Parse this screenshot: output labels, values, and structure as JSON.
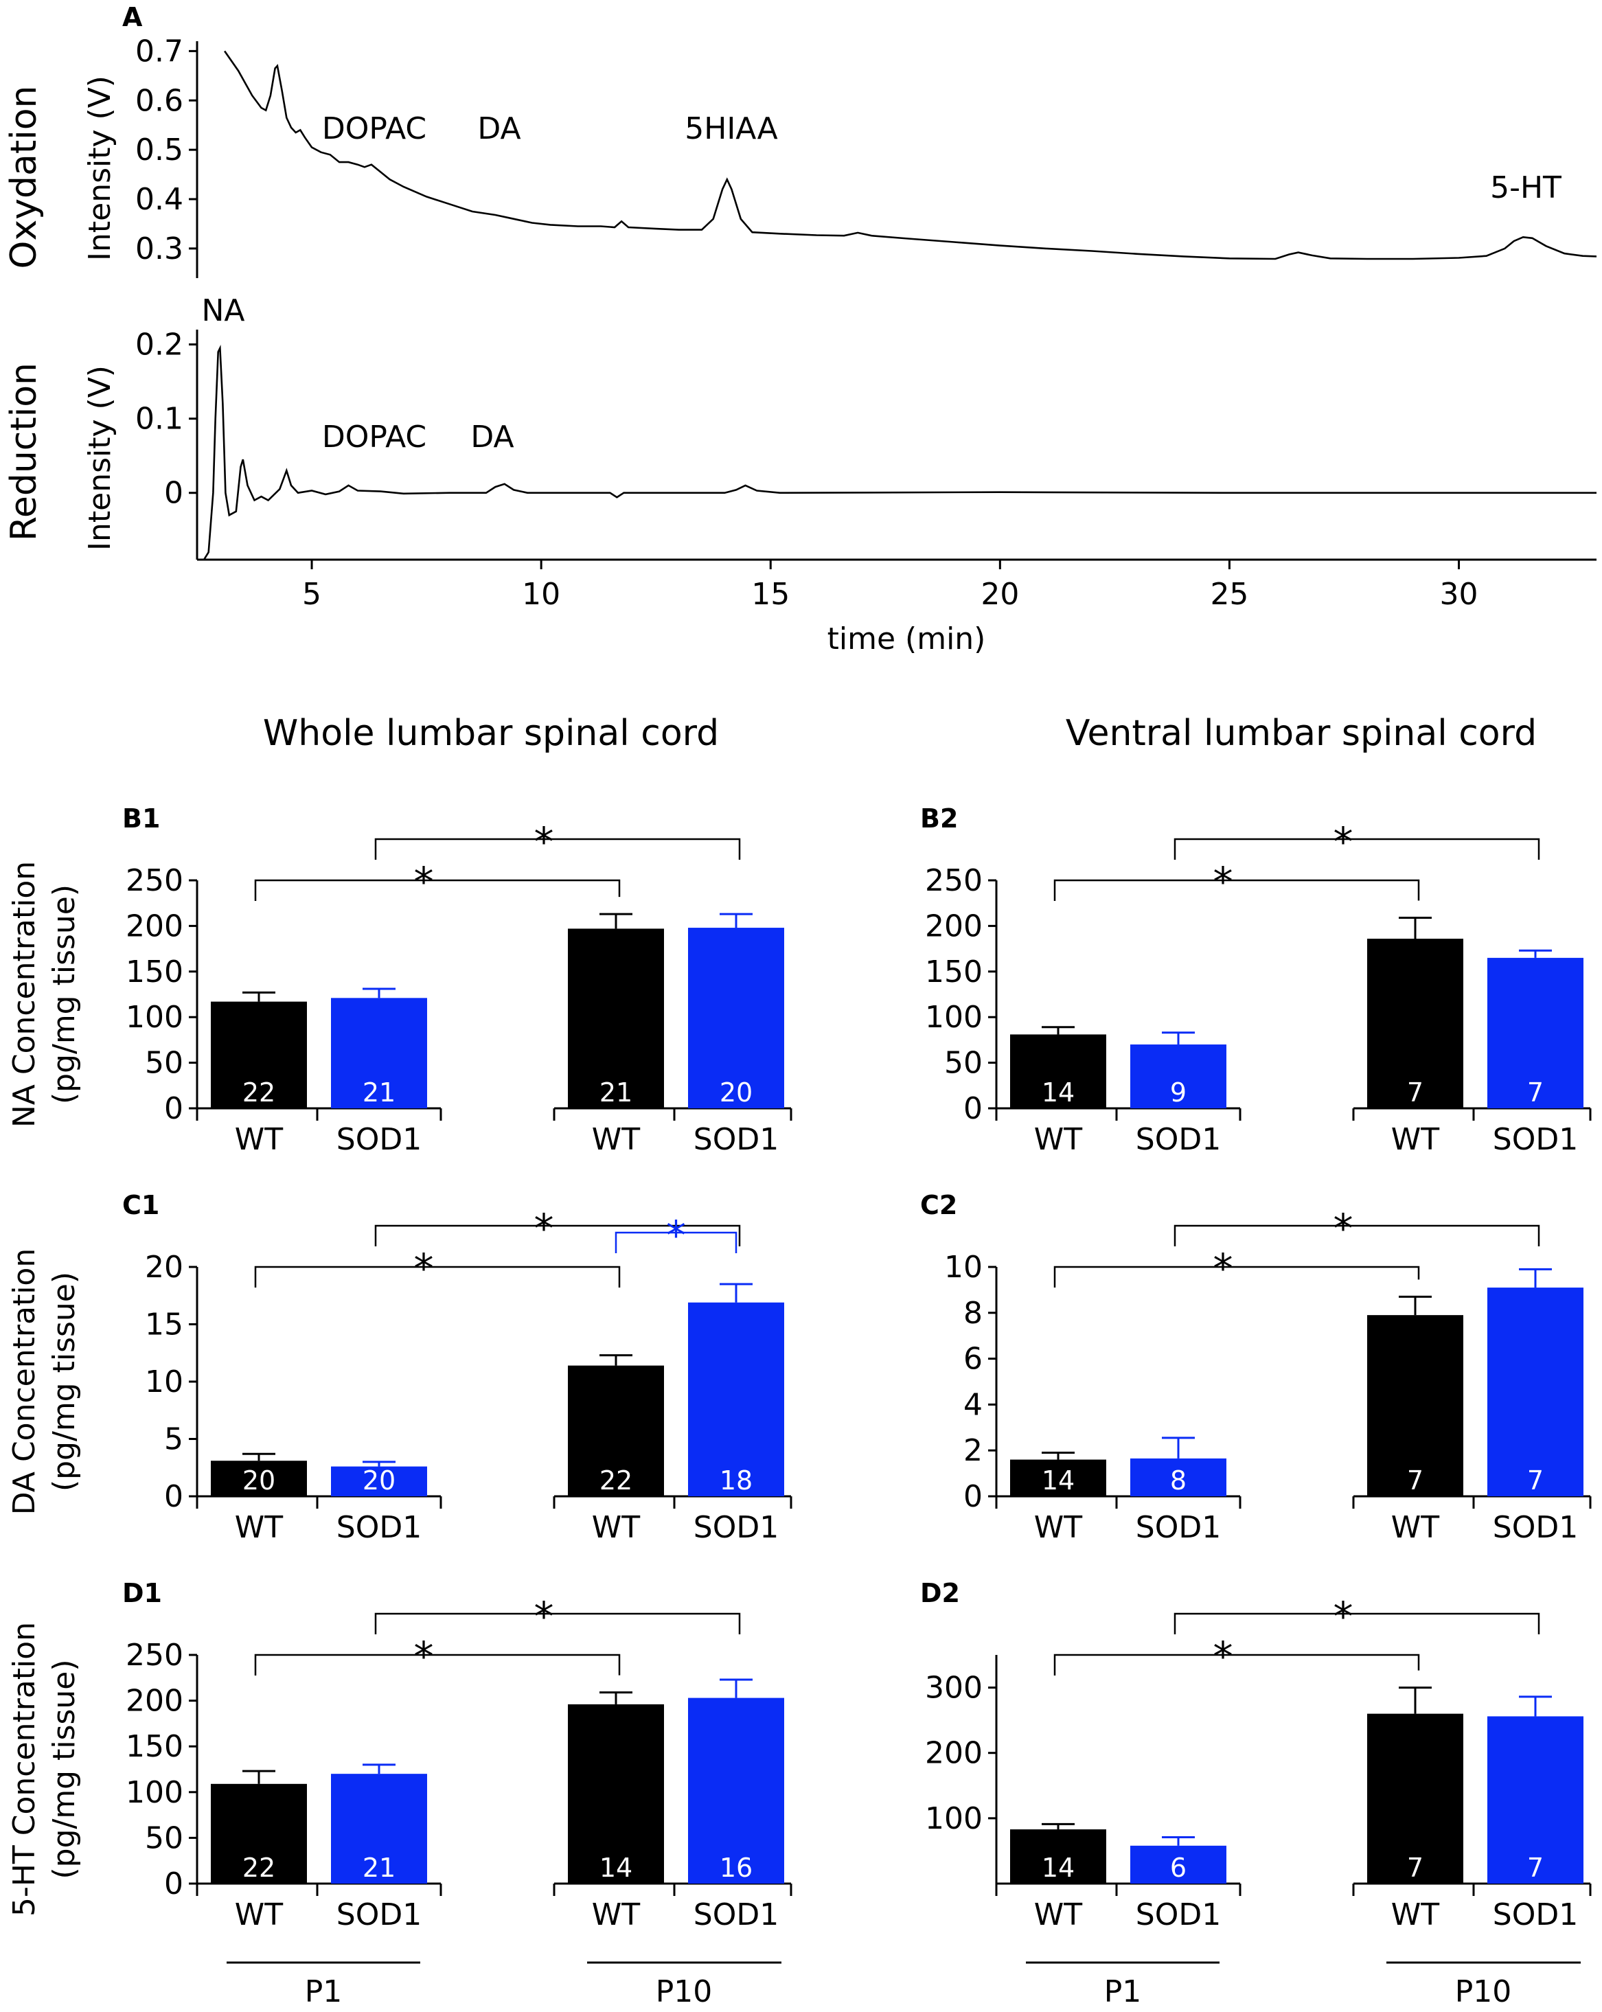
{
  "colors": {
    "wt": "#000000",
    "sod1": "#0a2cf5",
    "sig_blue": "#0a2cf5",
    "axis": "#000000"
  },
  "headings": {
    "left": "Whole lumbar spinal cord",
    "right": "Ventral lumbar spinal cord"
  },
  "groups": {
    "g1": "P1",
    "g2": "P10"
  },
  "star": "*",
  "chart_data": [
    {
      "id": "A",
      "type": "line",
      "panel_label": "A",
      "xlabel": "time (min)",
      "xlim": [
        2.5,
        33
      ],
      "xticks": [
        "5",
        "10",
        "15",
        "20",
        "25",
        "30"
      ],
      "subplots": [
        {
          "name": "oxidation",
          "row_label": "Oxydation",
          "ylabel": "Intensity (V)",
          "ylim": [
            0.24,
            0.72
          ],
          "yticks": [
            "0.7",
            "0.6",
            "0.5",
            "0.4",
            "0.3"
          ],
          "peak_labels": [
            "DOPAC",
            "DA",
            "5HIAA",
            "5-HT"
          ],
          "trace": [
            [
              3.1,
              0.7
            ],
            [
              3.4,
              0.66
            ],
            [
              3.7,
              0.61
            ],
            [
              3.9,
              0.585
            ],
            [
              4.0,
              0.58
            ],
            [
              4.1,
              0.61
            ],
            [
              4.2,
              0.665
            ],
            [
              4.25,
              0.67
            ],
            [
              4.35,
              0.62
            ],
            [
              4.45,
              0.565
            ],
            [
              4.55,
              0.545
            ],
            [
              4.65,
              0.535
            ],
            [
              4.75,
              0.54
            ],
            [
              4.85,
              0.525
            ],
            [
              5.0,
              0.505
            ],
            [
              5.2,
              0.495
            ],
            [
              5.4,
              0.49
            ],
            [
              5.6,
              0.475
            ],
            [
              5.8,
              0.475
            ],
            [
              6.0,
              0.47
            ],
            [
              6.15,
              0.465
            ],
            [
              6.3,
              0.47
            ],
            [
              6.5,
              0.455
            ],
            [
              6.7,
              0.44
            ],
            [
              7.0,
              0.425
            ],
            [
              7.5,
              0.405
            ],
            [
              8.0,
              0.39
            ],
            [
              8.5,
              0.375
            ],
            [
              9.0,
              0.368
            ],
            [
              9.3,
              0.362
            ],
            [
              9.5,
              0.358
            ],
            [
              9.8,
              0.352
            ],
            [
              10.2,
              0.348
            ],
            [
              10.8,
              0.345
            ],
            [
              11.3,
              0.345
            ],
            [
              11.6,
              0.343
            ],
            [
              11.75,
              0.355
            ],
            [
              11.9,
              0.343
            ],
            [
              12.5,
              0.34
            ],
            [
              13.0,
              0.338
            ],
            [
              13.5,
              0.338
            ],
            [
              13.75,
              0.36
            ],
            [
              13.95,
              0.42
            ],
            [
              14.05,
              0.44
            ],
            [
              14.15,
              0.42
            ],
            [
              14.35,
              0.36
            ],
            [
              14.6,
              0.333
            ],
            [
              15.2,
              0.33
            ],
            [
              16.0,
              0.327
            ],
            [
              16.6,
              0.326
            ],
            [
              16.9,
              0.332
            ],
            [
              17.2,
              0.326
            ],
            [
              18.0,
              0.32
            ],
            [
              19.0,
              0.313
            ],
            [
              20.0,
              0.306
            ],
            [
              21.0,
              0.3
            ],
            [
              22.0,
              0.295
            ],
            [
              23.0,
              0.289
            ],
            [
              24.0,
              0.284
            ],
            [
              25.0,
              0.28
            ],
            [
              26.0,
              0.279
            ],
            [
              26.3,
              0.288
            ],
            [
              26.5,
              0.292
            ],
            [
              26.8,
              0.286
            ],
            [
              27.2,
              0.28
            ],
            [
              28.0,
              0.279
            ],
            [
              29.0,
              0.279
            ],
            [
              30.0,
              0.281
            ],
            [
              30.6,
              0.285
            ],
            [
              31.0,
              0.3
            ],
            [
              31.2,
              0.315
            ],
            [
              31.4,
              0.323
            ],
            [
              31.6,
              0.321
            ],
            [
              31.9,
              0.305
            ],
            [
              32.3,
              0.29
            ],
            [
              32.7,
              0.285
            ],
            [
              33.0,
              0.284
            ]
          ]
        },
        {
          "name": "reduction",
          "row_label": "Reduction",
          "ylabel": "Intensity (V)",
          "ylim": [
            -0.09,
            0.22
          ],
          "yticks": [
            "0.2",
            "0.1",
            "0"
          ],
          "peak_labels": [
            "NA",
            "DOPAC",
            "DA"
          ],
          "trace": [
            [
              2.65,
              -0.09
            ],
            [
              2.75,
              -0.08
            ],
            [
              2.85,
              0.0
            ],
            [
              2.9,
              0.1
            ],
            [
              2.96,
              0.19
            ],
            [
              3.0,
              0.195
            ],
            [
              3.06,
              0.12
            ],
            [
              3.12,
              0.0
            ],
            [
              3.2,
              -0.03
            ],
            [
              3.35,
              -0.025
            ],
            [
              3.45,
              0.035
            ],
            [
              3.5,
              0.045
            ],
            [
              3.6,
              0.01
            ],
            [
              3.75,
              -0.01
            ],
            [
              3.9,
              -0.005
            ],
            [
              4.05,
              -0.01
            ],
            [
              4.3,
              0.005
            ],
            [
              4.45,
              0.03
            ],
            [
              4.55,
              0.01
            ],
            [
              4.7,
              0.0
            ],
            [
              5.0,
              0.003
            ],
            [
              5.3,
              -0.002
            ],
            [
              5.6,
              0.002
            ],
            [
              5.8,
              0.01
            ],
            [
              6.0,
              0.003
            ],
            [
              6.5,
              0.002
            ],
            [
              7.0,
              -0.001
            ],
            [
              8.0,
              0.0
            ],
            [
              8.8,
              0.0
            ],
            [
              9.0,
              0.008
            ],
            [
              9.2,
              0.012
            ],
            [
              9.4,
              0.004
            ],
            [
              9.7,
              0.0
            ],
            [
              10.5,
              0.0
            ],
            [
              11.5,
              0.0
            ],
            [
              11.65,
              -0.006
            ],
            [
              11.8,
              0.0
            ],
            [
              13.0,
              0.0
            ],
            [
              14.0,
              0.0
            ],
            [
              14.25,
              0.004
            ],
            [
              14.45,
              0.01
            ],
            [
              14.7,
              0.003
            ],
            [
              15.2,
              0.0
            ],
            [
              20.0,
              0.001
            ],
            [
              25.0,
              0.0
            ],
            [
              30.0,
              0.0
            ],
            [
              33.0,
              0.0
            ]
          ]
        }
      ]
    },
    {
      "id": "B1",
      "panel_label": "B1",
      "type": "bar",
      "ylabel_line1": "NA Concentration",
      "ylabel_line2": "(pg/mg tissue)",
      "ylim": [
        0,
        250
      ],
      "yticks": [
        "0",
        "50",
        "100",
        "150",
        "200",
        "250"
      ],
      "categories": [
        "WT",
        "SOD1",
        "WT",
        "SOD1"
      ],
      "values": [
        117,
        121,
        197,
        198
      ],
      "errors": [
        10,
        10,
        16,
        15
      ],
      "n": [
        "22",
        "21",
        "21",
        "20"
      ],
      "comparisons": [
        {
          "from": 0,
          "to": 2,
          "color": "black"
        },
        {
          "from": 1,
          "to": 3,
          "color": "black"
        }
      ]
    },
    {
      "id": "B2",
      "panel_label": "B2",
      "type": "bar",
      "ylabel_line1": "",
      "ylabel_line2": "",
      "ylim": [
        0,
        250
      ],
      "yticks": [
        "0",
        "50",
        "100",
        "150",
        "200",
        "250"
      ],
      "categories": [
        "WT",
        "SOD1",
        "WT",
        "SOD1"
      ],
      "values": [
        81,
        70,
        186,
        165
      ],
      "errors": [
        8,
        13,
        23,
        8
      ],
      "n": [
        "14",
        "9",
        "7",
        "7"
      ],
      "comparisons": [
        {
          "from": 0,
          "to": 2,
          "color": "black"
        },
        {
          "from": 1,
          "to": 3,
          "color": "black"
        }
      ]
    },
    {
      "id": "C1",
      "panel_label": "C1",
      "type": "bar",
      "ylabel_line1": "DA Concentration",
      "ylabel_line2": "(pg/mg tissue)",
      "ylim": [
        0,
        20
      ],
      "yticks": [
        "0",
        "5",
        "10",
        "15",
        "20"
      ],
      "categories": [
        "WT",
        "SOD1",
        "WT",
        "SOD1"
      ],
      "values": [
        3.1,
        2.6,
        11.4,
        16.9
      ],
      "errors": [
        0.6,
        0.4,
        0.9,
        1.6
      ],
      "n": [
        "20",
        "20",
        "22",
        "18"
      ],
      "comparisons": [
        {
          "from": 0,
          "to": 2,
          "color": "black"
        },
        {
          "from": 1,
          "to": 3,
          "color": "black"
        },
        {
          "from": 2,
          "to": 3,
          "color": "blue"
        }
      ]
    },
    {
      "id": "C2",
      "panel_label": "C2",
      "type": "bar",
      "ylabel_line1": "",
      "ylabel_line2": "",
      "ylim": [
        0,
        10
      ],
      "yticks": [
        "0",
        "2",
        "4",
        "6",
        "8",
        "10"
      ],
      "categories": [
        "WT",
        "SOD1",
        "WT",
        "SOD1"
      ],
      "values": [
        1.6,
        1.65,
        7.9,
        9.1
      ],
      "errors": [
        0.3,
        0.9,
        0.8,
        0.8
      ],
      "n": [
        "14",
        "8",
        "7",
        "7"
      ],
      "comparisons": [
        {
          "from": 0,
          "to": 2,
          "color": "black"
        },
        {
          "from": 1,
          "to": 3,
          "color": "black"
        }
      ]
    },
    {
      "id": "D1",
      "panel_label": "D1",
      "type": "bar",
      "ylabel_line1": "5-HT Concentration",
      "ylabel_line2": "(pg/mg tissue)",
      "ylim": [
        0,
        250
      ],
      "yticks": [
        "0",
        "50",
        "100",
        "150",
        "200",
        "250"
      ],
      "categories": [
        "WT",
        "SOD1",
        "WT",
        "SOD1"
      ],
      "values": [
        109,
        120,
        196,
        203
      ],
      "errors": [
        14,
        10,
        13,
        20
      ],
      "n": [
        "22",
        "21",
        "14",
        "16"
      ],
      "comparisons": [
        {
          "from": 0,
          "to": 2,
          "color": "black"
        },
        {
          "from": 1,
          "to": 3,
          "color": "black"
        }
      ]
    },
    {
      "id": "D2",
      "panel_label": "D2",
      "type": "bar",
      "ylabel_line1": "",
      "ylabel_line2": "",
      "ylim": [
        0,
        350
      ],
      "yticks": [
        "100",
        "200",
        "300"
      ],
      "categories": [
        "WT",
        "SOD1",
        "WT",
        "SOD1"
      ],
      "values": [
        83,
        58,
        260,
        256
      ],
      "errors": [
        8,
        13,
        40,
        30
      ],
      "n": [
        "14",
        "6",
        "7",
        "7"
      ],
      "comparisons": [
        {
          "from": 0,
          "to": 2,
          "color": "black"
        },
        {
          "from": 1,
          "to": 3,
          "color": "black"
        }
      ]
    }
  ]
}
